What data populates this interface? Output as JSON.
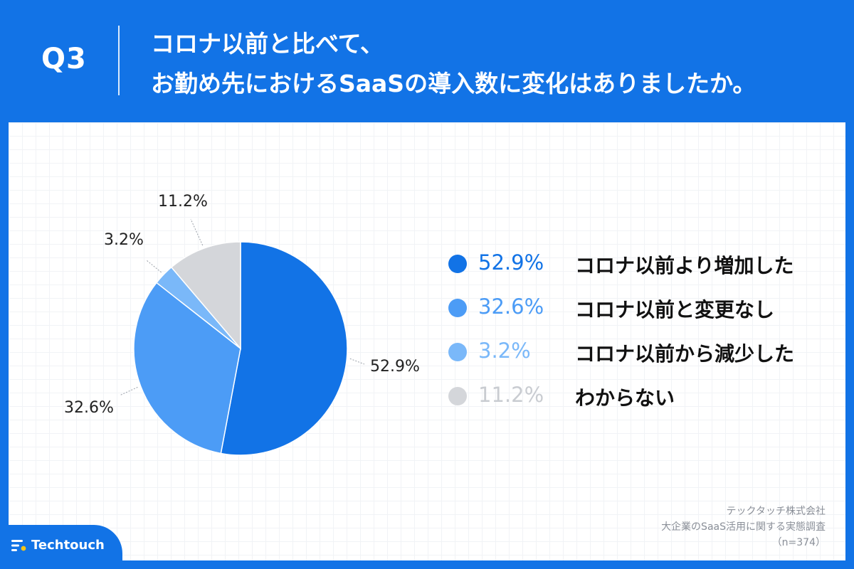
{
  "header": {
    "question_number": "Q3",
    "question_line1": "コロナ以前と比べて、",
    "question_line2": "お勤め先におけるSaaSの導入数に変化はありましたか。"
  },
  "chart_data": {
    "type": "pie",
    "categories": [
      "コロナ以前より増加した",
      "コロナ以前と変更なし",
      "コロナ以前から減少した",
      "わからない"
    ],
    "values": [
      52.9,
      32.6,
      3.2,
      11.2
    ],
    "value_labels": [
      "52.9%",
      "32.6%",
      "3.2%",
      "11.2%"
    ],
    "colors": [
      "#1273e6",
      "#4c9cf6",
      "#7ab8f9",
      "#d4d6da"
    ],
    "start_angle_deg": 0,
    "direction": "clockwise",
    "legend_position": "right"
  },
  "legend_text_colors": [
    "#1273e6",
    "#4c9cf6",
    "#7ab8f9",
    "#c9ccd1"
  ],
  "source": {
    "line1": "テックタッチ株式会社",
    "line2": "大企業のSaaS活用に関する実態調査",
    "line3": "（n=374）"
  },
  "brand": {
    "name": "Techtouch",
    "logo_icon": "techtouch-logo-icon"
  },
  "background_color": "#1273e6"
}
